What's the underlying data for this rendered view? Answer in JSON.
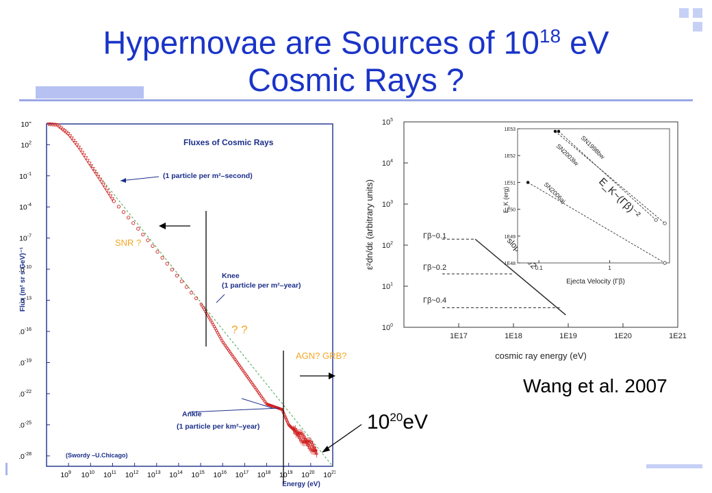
{
  "slide": {
    "title_line1_pre": "Hypernovae are Sources of 10",
    "title_sup": "18",
    "title_line1_post": " eV",
    "title_line2": "Cosmic Rays ?",
    "colors": {
      "title": "#1a34c8",
      "accent": "#f5a623",
      "deco": "#c7d0f5"
    }
  },
  "annotations": {
    "snr": "SNR ?",
    "qq": "?  ?",
    "agn": "AGN? GRB?",
    "credit": "Wang et al. 2007",
    "energy_base": "10",
    "energy_sup": "20",
    "energy_unit": "eV"
  },
  "left_plot_text": {
    "title": "Fluxes of Cosmic Rays",
    "note1": "(1 particle per m²–second)",
    "knee": "Knee",
    "note2": "(1 particle per m²–year)",
    "ankle": "Ankle",
    "note3": "(1 particle per km²–year)",
    "source": "(Swordy –U.Chicago)",
    "ylabel": "Flux (m² sr s GeV)⁻¹",
    "xlabel": "Energy (eV)"
  },
  "right_plot_text": {
    "ylabel": "ε²dn/dε  (arbitrary units)",
    "xlabel": "cosmic ray energy (eV)",
    "g1": "Γβ~0.1",
    "g2": "Γβ~0.2",
    "g3": "Γβ~0.4",
    "slope": "slope=-α/2",
    "inset_ylabel": "E_K (erg)",
    "inset_xlabel": "Ejecta Velocity (Γβ)",
    "inset_relation": "E_K~(Γβ)⁻²",
    "sn1": "SN1998bw",
    "sn2": "SN2003lw",
    "sn3": "SN2006aj"
  },
  "chart_data": [
    {
      "type": "scatter",
      "title": "Fluxes of Cosmic Rays",
      "xlabel": "Energy (eV)",
      "ylabel": "Flux (m² sr s GeV)⁻¹",
      "x_scale": "log",
      "y_scale": "log",
      "xlim": [
        100000000.0,
        1e+21
      ],
      "ylim": [
        1e-29,
        10000.0
      ],
      "x_tick_exponents": [
        9,
        10,
        11,
        12,
        13,
        14,
        15,
        16,
        17,
        18,
        19,
        20,
        21
      ],
      "y_tick_exponents": [
        4,
        2,
        -1,
        -4,
        -7,
        -10,
        -13,
        -16,
        -19,
        -22,
        -25,
        -28
      ],
      "series": [
        {
          "x": [
            100000000.0,
            300000000.0,
            1000000000.0,
            3000000000.0,
            10000000000.0,
            30000000000.0,
            100000000000.0,
            1000000000000.0,
            10000000000000.0,
            100000000000000.0,
            1000000000000000.0,
            3000000000000000.0,
            1e+16,
            1e+17,
            1e+18,
            5e+18,
            1e+19,
            3e+19,
            1e+20,
            2e+20
          ],
          "y": [
            10000,
            8000,
            1000,
            50,
            1,
            0.03,
            0.0005,
            2e-06,
            6e-09,
            1.5e-11,
            5e-14,
            1e-15,
            1e-17,
            1e-20,
            1e-23,
            3e-24,
            1e-25,
            1e-26,
            1e-27,
            2e-28
          ]
        }
      ],
      "color": "#d02020"
    },
    {
      "type": "line",
      "xlabel": "cosmic ray energy (eV)",
      "ylabel": "ε²dn/dε  (arbitrary units)",
      "x_scale": "log",
      "y_scale": "log",
      "xlim": [
        1e+16,
        1e+21
      ],
      "ylim": [
        1,
        100000
      ],
      "x_tick_labels": [
        "1E17",
        "1E18",
        "1E19",
        "1E20",
        "1E21"
      ],
      "series": [
        {
          "name": "Γβ~0.1",
          "x": [
            5e+16,
            2e+17
          ],
          "y": [
            140,
            140
          ]
        },
        {
          "name": "Γβ~0.2",
          "x": [
            5e+16,
            1e+18
          ],
          "y": [
            20,
            20
          ]
        },
        {
          "name": "Γβ~0.4",
          "x": [
            5e+16,
            7e+18
          ],
          "y": [
            3,
            3
          ]
        },
        {
          "name": "slope=-α/2",
          "x": [
            2e+17,
            9e+18
          ],
          "y": [
            140,
            2
          ]
        }
      ],
      "inset": {
        "type": "scatter",
        "xlabel": "Ejecta Velocity (Γβ)",
        "ylabel": "E_K (erg)",
        "x_scale": "log",
        "y_scale": "log",
        "xlim": [
          0.05,
          7
        ],
        "ylim": [
          1e+48,
          1e+53
        ],
        "series": [
          {
            "name": "SN1998bw",
            "x": [
              0.19,
              4.5
            ],
            "y": [
              8e+52,
              4e+49
            ]
          },
          {
            "name": "SN2003lw",
            "x": [
              0.17,
              6
            ],
            "y": [
              8e+52,
              3e+49
            ]
          },
          {
            "name": "SN2006aj",
            "x": [
              0.07,
              6
            ],
            "y": [
              1e+51,
              1e+48
            ]
          }
        ]
      }
    }
  ]
}
